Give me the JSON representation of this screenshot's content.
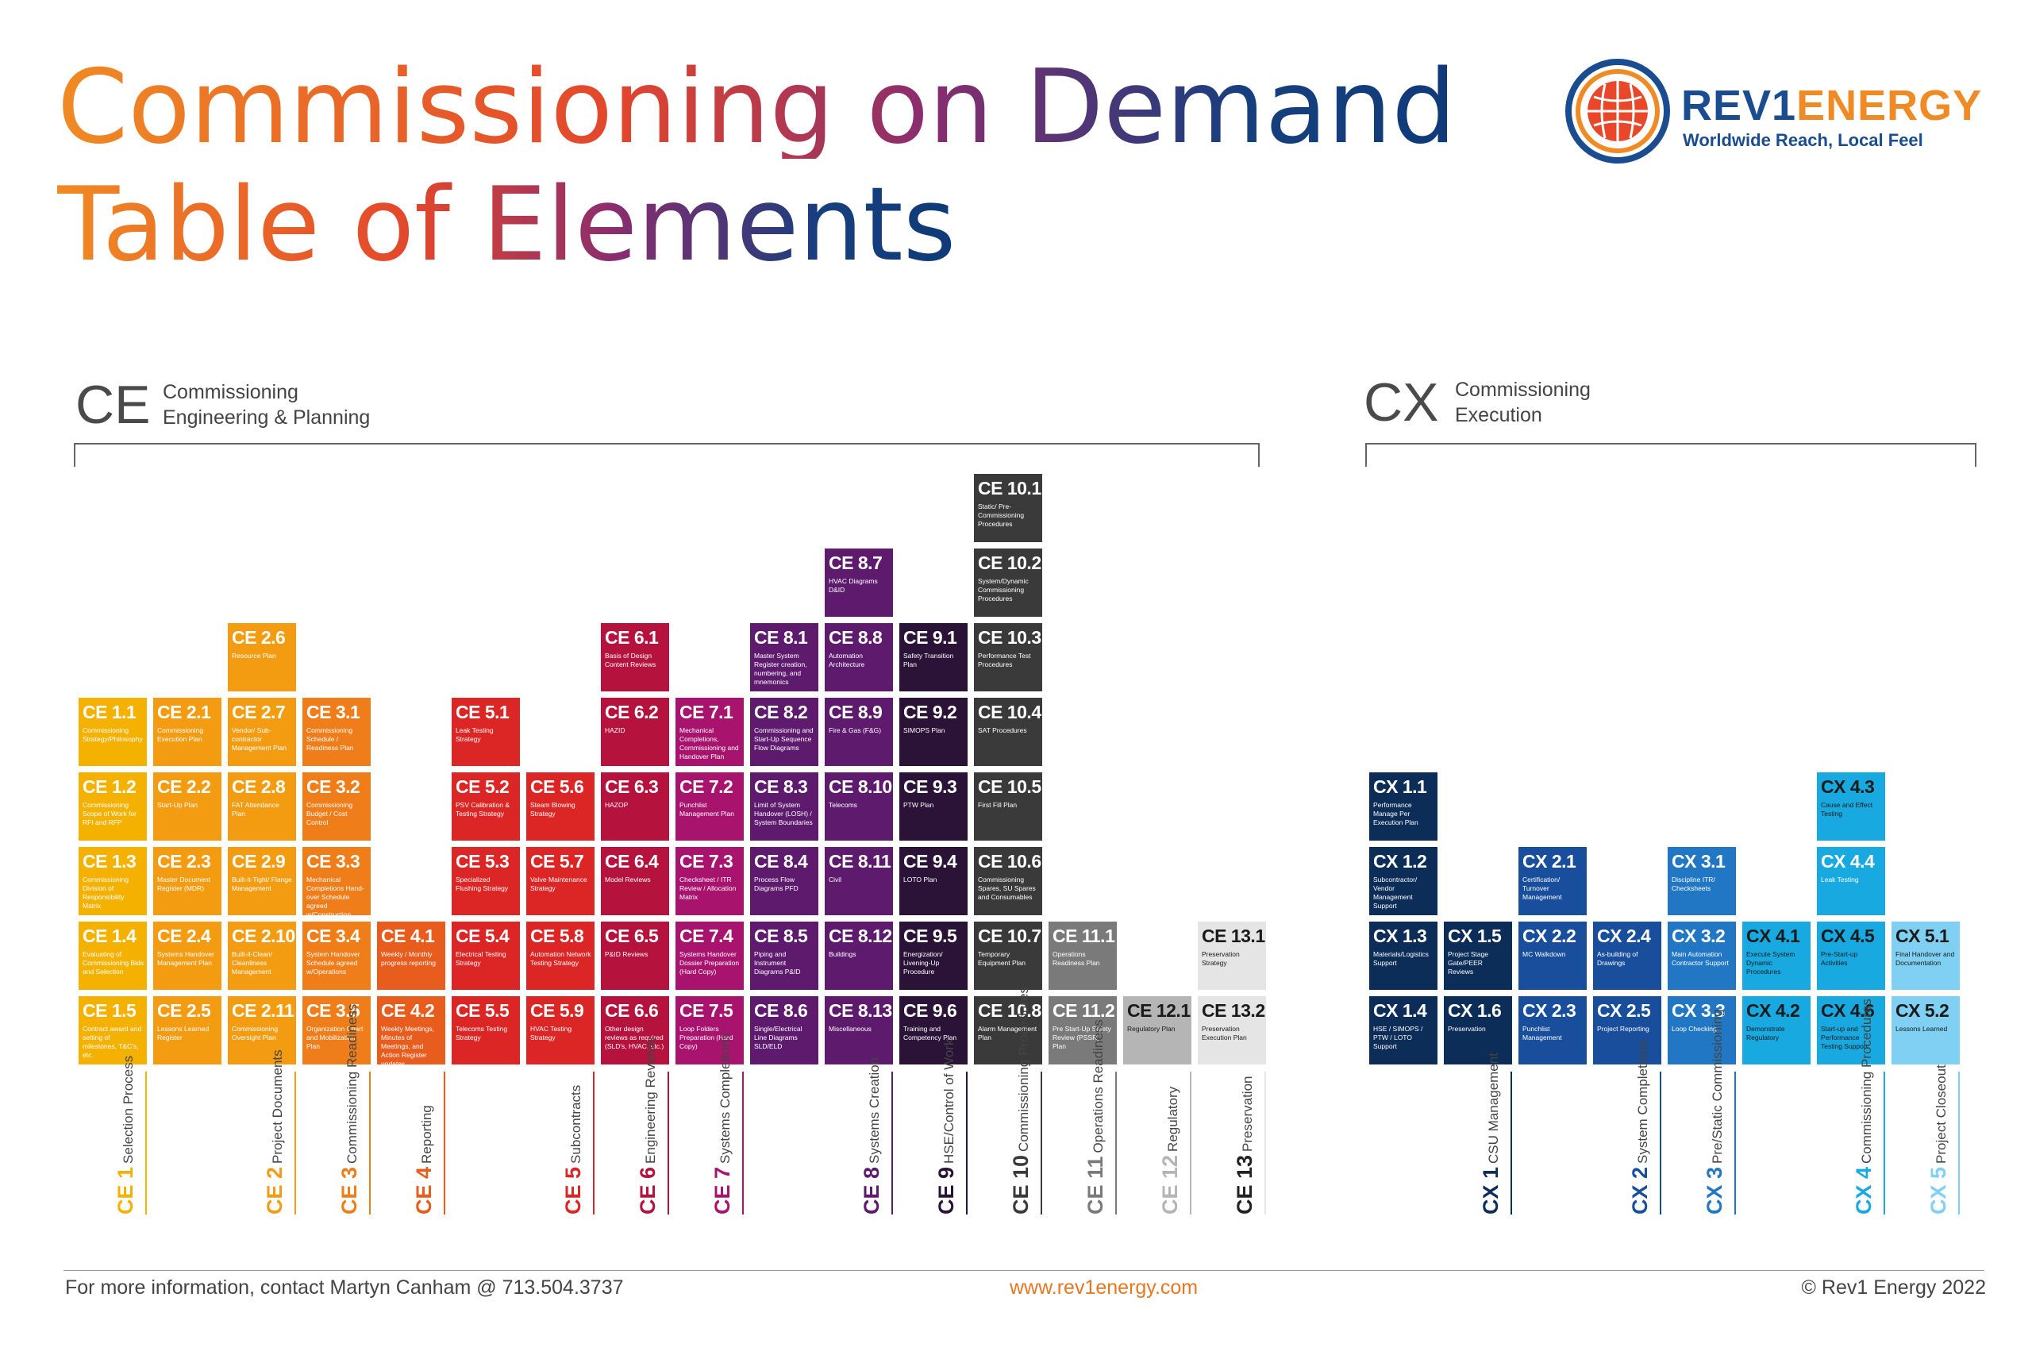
{
  "title_line1": "Commissioning on Demand",
  "title_line2": "Table of Elements",
  "logo": {
    "name_part1": "REV1",
    "name_part2": "ENERGY",
    "tagline": "Worldwide Reach, Local Feel"
  },
  "sections": {
    "ce": {
      "code": "CE",
      "name_line1": "Commissioning",
      "name_line2": "Engineering & Planning"
    },
    "cx": {
      "code": "CX",
      "name_line1": "Commissioning",
      "name_line2": "Execution"
    }
  },
  "colors": {
    "ce1": "#f5b100",
    "ce2": "#f39c12",
    "ce3": "#ef7d1a",
    "ce4": "#e85c1e",
    "ce5": "#dc2626",
    "ce6": "#b5123e",
    "ce7": "#a8136e",
    "ce8": "#5e1b6e",
    "ce9": "#2b1338",
    "ce10": "#3a3a3a",
    "ce11": "#7a7a7a",
    "ce12": "#b5b5b5",
    "ce13": "#e5e5e5",
    "cx1": "#0c2d57",
    "cx2": "#184e9b",
    "cx3": "#2177c4",
    "cx4": "#18a9e0",
    "cx5": "#7fd0f2"
  },
  "elements": [
    {
      "col": 0,
      "row": 1,
      "g": "ce1",
      "code": "CE 1.1",
      "desc": "Commissioning Strategy/Philosophy"
    },
    {
      "col": 0,
      "row": 2,
      "g": "ce1",
      "code": "CE 1.2",
      "desc": "Commissioning Scope of Work for RFI and RFP"
    },
    {
      "col": 0,
      "row": 3,
      "g": "ce1",
      "code": "CE 1.3",
      "desc": "Commissioning Division of Responsibility Matrix"
    },
    {
      "col": 0,
      "row": 4,
      "g": "ce1",
      "code": "CE 1.4",
      "desc": "Evaluating of Commissioning Bids and Selection"
    },
    {
      "col": 0,
      "row": 5,
      "g": "ce1",
      "code": "CE 1.5",
      "desc": "Contract award and setting of milestones, T&C's, etc."
    },
    {
      "col": 1,
      "row": 1,
      "g": "ce2",
      "code": "CE 2.1",
      "desc": "Commissioning Execution Plan"
    },
    {
      "col": 1,
      "row": 2,
      "g": "ce2",
      "code": "CE 2.2",
      "desc": "Start-Up Plan"
    },
    {
      "col": 1,
      "row": 3,
      "g": "ce2",
      "code": "CE 2.3",
      "desc": "Master Document Register (MDR)"
    },
    {
      "col": 1,
      "row": 4,
      "g": "ce2",
      "code": "CE 2.4",
      "desc": "Systems Handover Management Plan"
    },
    {
      "col": 1,
      "row": 5,
      "g": "ce2",
      "code": "CE 2.5",
      "desc": "Lessons Learned Register"
    },
    {
      "col": 2,
      "row": 0,
      "g": "ce2",
      "code": "CE 2.6",
      "desc": "Resource Plan"
    },
    {
      "col": 2,
      "row": 1,
      "g": "ce2",
      "code": "CE 2.7",
      "desc": "Vendor/ Sub-contractor Management Plan"
    },
    {
      "col": 2,
      "row": 2,
      "g": "ce2",
      "code": "CE 2.8",
      "desc": "FAT Attendance Plan"
    },
    {
      "col": 2,
      "row": 3,
      "g": "ce2",
      "code": "CE 2.9",
      "desc": "Built-it-Tight/ Flange Management"
    },
    {
      "col": 2,
      "row": 4,
      "g": "ce2",
      "code": "CE 2.10",
      "desc": "Built-it-Clean/ Cleanliness Management"
    },
    {
      "col": 2,
      "row": 5,
      "g": "ce2",
      "code": "CE 2.11",
      "desc": "Commissioning Oversight Plan"
    },
    {
      "col": 3,
      "row": 1,
      "g": "ce3",
      "code": "CE 3.1",
      "desc": "Commissioning Schedule / Readiness Plan"
    },
    {
      "col": 3,
      "row": 2,
      "g": "ce3",
      "code": "CE 3.2",
      "desc": "Commissioning Budget / Cost Control"
    },
    {
      "col": 3,
      "row": 3,
      "g": "ce3",
      "code": "CE 3.3",
      "desc": "Mechanical Completions Hand-over Schedule agreed w/Construction"
    },
    {
      "col": 3,
      "row": 4,
      "g": "ce3",
      "code": "CE 3.4",
      "desc": "System Handover Schedule agreed w/Operations"
    },
    {
      "col": 3,
      "row": 5,
      "g": "ce3",
      "code": "CE 3.5",
      "desc": "Organization Chart and Mobilization Plan"
    },
    {
      "col": 4,
      "row": 4,
      "g": "ce4",
      "code": "CE 4.1",
      "desc": "Weekly / Monthly progress reporting"
    },
    {
      "col": 4,
      "row": 5,
      "g": "ce4",
      "code": "CE 4.2",
      "desc": "Weekly Meetings, Minutes of Meetings, and Action Register updates"
    },
    {
      "col": 5,
      "row": 1,
      "g": "ce5",
      "code": "CE 5.1",
      "desc": "Leak Testing Strategy"
    },
    {
      "col": 5,
      "row": 2,
      "g": "ce5",
      "code": "CE 5.2",
      "desc": "PSV Calibration & Testing Strategy"
    },
    {
      "col": 5,
      "row": 3,
      "g": "ce5",
      "code": "CE 5.3",
      "desc": "Specialized Flushing Strategy"
    },
    {
      "col": 5,
      "row": 4,
      "g": "ce5",
      "code": "CE 5.4",
      "desc": "Electrical Testing Strategy"
    },
    {
      "col": 5,
      "row": 5,
      "g": "ce5",
      "code": "CE 5.5",
      "desc": "Telecoms Testing Strategy"
    },
    {
      "col": 6,
      "row": 2,
      "g": "ce5",
      "code": "CE 5.6",
      "desc": "Steam Blowing Strategy"
    },
    {
      "col": 6,
      "row": 3,
      "g": "ce5",
      "code": "CE 5.7",
      "desc": "Valve Maintenance Strategy"
    },
    {
      "col": 6,
      "row": 4,
      "g": "ce5",
      "code": "CE 5.8",
      "desc": "Automation Network Testing Strategy"
    },
    {
      "col": 6,
      "row": 5,
      "g": "ce5",
      "code": "CE 5.9",
      "desc": "HVAC Testing Strategy"
    },
    {
      "col": 7,
      "row": 0,
      "g": "ce6",
      "code": "CE 6.1",
      "desc": "Basis of Design Content Reviews"
    },
    {
      "col": 7,
      "row": 1,
      "g": "ce6",
      "code": "CE 6.2",
      "desc": "HAZID"
    },
    {
      "col": 7,
      "row": 2,
      "g": "ce6",
      "code": "CE 6.3",
      "desc": "HAZOP"
    },
    {
      "col": 7,
      "row": 3,
      "g": "ce6",
      "code": "CE 6.4",
      "desc": "Model Reviews"
    },
    {
      "col": 7,
      "row": 4,
      "g": "ce6",
      "code": "CE 6.5",
      "desc": "P&ID Reviews"
    },
    {
      "col": 7,
      "row": 5,
      "g": "ce6",
      "code": "CE 6.6",
      "desc": "Other design reviews as required (SLD's, HVAC, etc.)"
    },
    {
      "col": 8,
      "row": 1,
      "g": "ce7",
      "code": "CE 7.1",
      "desc": "Mechanical Completions, Commissioning and Handover Plan"
    },
    {
      "col": 8,
      "row": 2,
      "g": "ce7",
      "code": "CE 7.2",
      "desc": "Punchlist Management Plan"
    },
    {
      "col": 8,
      "row": 3,
      "g": "ce7",
      "code": "CE 7.3",
      "desc": "Checksheet / ITR Review / Allocation Matrix"
    },
    {
      "col": 8,
      "row": 4,
      "g": "ce7",
      "code": "CE 7.4",
      "desc": "Systems Handover Dossier Preparation (Hard Copy)"
    },
    {
      "col": 8,
      "row": 5,
      "g": "ce7",
      "code": "CE 7.5",
      "desc": "Loop Folders Preparation (Hard Copy)"
    },
    {
      "col": 9,
      "row": 0,
      "g": "ce8",
      "code": "CE 8.1",
      "desc": "Master System Register creation, numbering, and mnemonics"
    },
    {
      "col": 9,
      "row": 1,
      "g": "ce8",
      "code": "CE 8.2",
      "desc": "Commissioning and Start-Up Sequence Flow Diagrams"
    },
    {
      "col": 9,
      "row": 2,
      "g": "ce8",
      "code": "CE 8.3",
      "desc": "Limit of System Handover (LOSH) / System Boundaries"
    },
    {
      "col": 9,
      "row": 3,
      "g": "ce8",
      "code": "CE 8.4",
      "desc": "Process Flow Diagrams PFD"
    },
    {
      "col": 9,
      "row": 4,
      "g": "ce8",
      "code": "CE 8.5",
      "desc": "Piping and Instrument Diagrams P&ID"
    },
    {
      "col": 9,
      "row": 5,
      "g": "ce8",
      "code": "CE 8.6",
      "desc": "Single/Electrical Line Diagrams SLD/ELD"
    },
    {
      "col": 10,
      "row": -1,
      "g": "ce8",
      "code": "CE 8.7",
      "desc": "HVAC Diagrams D&ID"
    },
    {
      "col": 10,
      "row": 0,
      "g": "ce8",
      "code": "CE 8.8",
      "desc": "Automation Architecture"
    },
    {
      "col": 10,
      "row": 1,
      "g": "ce8",
      "code": "CE 8.9",
      "desc": "Fire & Gas (F&G)"
    },
    {
      "col": 10,
      "row": 2,
      "g": "ce8",
      "code": "CE 8.10",
      "desc": "Telecoms"
    },
    {
      "col": 10,
      "row": 3,
      "g": "ce8",
      "code": "CE 8.11",
      "desc": "Civil"
    },
    {
      "col": 10,
      "row": 4,
      "g": "ce8",
      "code": "CE 8.12",
      "desc": "Buildings"
    },
    {
      "col": 10,
      "row": 5,
      "g": "ce8",
      "code": "CE 8.13",
      "desc": "Miscellaneous"
    },
    {
      "col": 11,
      "row": 0,
      "g": "ce9",
      "code": "CE 9.1",
      "desc": "Safety Transition Plan"
    },
    {
      "col": 11,
      "row": 1,
      "g": "ce9",
      "code": "CE 9.2",
      "desc": "SIMOPS Plan"
    },
    {
      "col": 11,
      "row": 2,
      "g": "ce9",
      "code": "CE 9.3",
      "desc": "PTW Plan"
    },
    {
      "col": 11,
      "row": 3,
      "g": "ce9",
      "code": "CE 9.4",
      "desc": "LOTO Plan"
    },
    {
      "col": 11,
      "row": 4,
      "g": "ce9",
      "code": "CE 9.5",
      "desc": "Energization/ Livening-Up Procedure"
    },
    {
      "col": 11,
      "row": 5,
      "g": "ce9",
      "code": "CE 9.6",
      "desc": "Training and Competency Plan"
    },
    {
      "col": 12,
      "row": -2,
      "g": "ce10",
      "code": "CE 10.1",
      "desc": "Static/ Pre-Commissioning Procedures"
    },
    {
      "col": 12,
      "row": -1,
      "g": "ce10",
      "code": "CE 10.2",
      "desc": "System/Dynamic Commissioning Procedures"
    },
    {
      "col": 12,
      "row": 0,
      "g": "ce10",
      "code": "CE 10.3",
      "desc": "Performance Test Procedures"
    },
    {
      "col": 12,
      "row": 1,
      "g": "ce10",
      "code": "CE 10.4",
      "desc": "SAT Procedures"
    },
    {
      "col": 12,
      "row": 2,
      "g": "ce10",
      "code": "CE 10.5",
      "desc": "First Fill Plan"
    },
    {
      "col": 12,
      "row": 3,
      "g": "ce10",
      "code": "CE 10.6",
      "desc": "Commissioning Spares, SU Spares and Consumables"
    },
    {
      "col": 12,
      "row": 4,
      "g": "ce10",
      "code": "CE 10.7",
      "desc": "Temporary Equipment Plan"
    },
    {
      "col": 12,
      "row": 5,
      "g": "ce10",
      "code": "CE 10.8",
      "desc": "Alarm Management Plan"
    },
    {
      "col": 13,
      "row": 4,
      "g": "ce11",
      "code": "CE 11.1",
      "desc": "Operations Readiness Plan"
    },
    {
      "col": 13,
      "row": 5,
      "g": "ce11",
      "code": "CE 11.2",
      "desc": "Pre Start-Up Safety Review (PSSR) Plan"
    },
    {
      "col": 14,
      "row": 5,
      "g": "ce12",
      "code": "CE 12.1",
      "desc": "Regulatory Plan",
      "dark": true
    },
    {
      "col": 15,
      "row": 4,
      "g": "ce13",
      "code": "CE 13.1",
      "desc": "Preservation Strategy",
      "dark": true
    },
    {
      "col": 15,
      "row": 5,
      "g": "ce13",
      "code": "CE 13.2",
      "desc": "Preservation Execution Plan",
      "dark": true
    },
    {
      "col": 16,
      "row": 2,
      "g": "cx1",
      "code": "CX 1.1",
      "desc": "Performance Manage Per Execution Plan"
    },
    {
      "col": 16,
      "row": 3,
      "g": "cx1",
      "code": "CX 1.2",
      "desc": "Subcontractor/ Vendor Management Support"
    },
    {
      "col": 16,
      "row": 4,
      "g": "cx1",
      "code": "CX 1.3",
      "desc": "Materials/Logistics Support"
    },
    {
      "col": 16,
      "row": 5,
      "g": "cx1",
      "code": "CX 1.4",
      "desc": "HSE / SIMOPS / PTW / LOTO Support"
    },
    {
      "col": 17,
      "row": 4,
      "g": "cx1",
      "code": "CX 1.5",
      "desc": "Project Stage Gate/PEER Reviews"
    },
    {
      "col": 17,
      "row": 5,
      "g": "cx1",
      "code": "CX 1.6",
      "desc": "Preservation"
    },
    {
      "col": 18,
      "row": 3,
      "g": "cx2",
      "code": "CX 2.1",
      "desc": "Certification/ Turnover Management"
    },
    {
      "col": 18,
      "row": 4,
      "g": "cx2",
      "code": "CX 2.2",
      "desc": "MC Walkdown"
    },
    {
      "col": 18,
      "row": 5,
      "g": "cx2",
      "code": "CX 2.3",
      "desc": "Punchlist Management"
    },
    {
      "col": 19,
      "row": 4,
      "g": "cx2",
      "code": "CX 2.4",
      "desc": "As-building of Drawings"
    },
    {
      "col": 19,
      "row": 5,
      "g": "cx2",
      "code": "CX 2.5",
      "desc": "Project Reporting"
    },
    {
      "col": 20,
      "row": 3,
      "g": "cx3",
      "code": "CX 3.1",
      "desc": "Discipline ITR/ Checksheets"
    },
    {
      "col": 20,
      "row": 4,
      "g": "cx3",
      "code": "CX 3.2",
      "desc": "Main Automation Contractor Support"
    },
    {
      "col": 20,
      "row": 5,
      "g": "cx3",
      "code": "CX 3.3",
      "desc": "Loop Checking"
    },
    {
      "col": 21,
      "row": 4,
      "g": "cx4",
      "code": "CX 4.1",
      "desc": "Execute System Dynamic Procedures",
      "dark": true
    },
    {
      "col": 21,
      "row": 5,
      "g": "cx4",
      "code": "CX 4.2",
      "desc": "Demonstrate Regulatory",
      "dark": true
    },
    {
      "col": 22,
      "row": 2,
      "g": "cx4",
      "code": "CX 4.3",
      "desc": "Cause and Effect Testing",
      "dark": true
    },
    {
      "col": 22,
      "row": 3,
      "g": "cx4",
      "code": "CX 4.4",
      "desc": "Leak Testing"
    },
    {
      "col": 22,
      "row": 4,
      "g": "cx4",
      "code": "CX 4.5",
      "desc": "Pre-Start-up Activities",
      "dark": true
    },
    {
      "col": 22,
      "row": 5,
      "g": "cx4",
      "code": "CX 4.6",
      "desc": "Start-up and Performance Testing Support",
      "dark": true
    },
    {
      "col": 23,
      "row": 4,
      "g": "cx5",
      "code": "CX 5.1",
      "desc": "Final Handover and Documentation",
      "dark": true
    },
    {
      "col": 23,
      "row": 5,
      "g": "cx5",
      "code": "CX 5.2",
      "desc": "Lessons Learned",
      "dark": true
    }
  ],
  "categories": [
    {
      "col": 0,
      "g": "ce1",
      "code": "CE 1",
      "name": "Selection Process"
    },
    {
      "col": 2,
      "g": "ce2",
      "code": "CE 2",
      "name": "Project Documents"
    },
    {
      "col": 3,
      "g": "ce3",
      "code": "CE 3",
      "name": "Commissioning Readiness"
    },
    {
      "col": 4,
      "g": "ce4",
      "code": "CE 4",
      "name": "Reporting"
    },
    {
      "col": 6,
      "g": "ce5",
      "code": "CE 5",
      "name": "Subcontracts"
    },
    {
      "col": 7,
      "g": "ce6",
      "code": "CE 6",
      "name": "Engineering Reviews"
    },
    {
      "col": 8,
      "g": "ce7",
      "code": "CE 7",
      "name": "Systems Completions"
    },
    {
      "col": 10,
      "g": "ce8",
      "code": "CE 8",
      "name": "Systems Creation"
    },
    {
      "col": 11,
      "g": "ce9",
      "code": "CE 9",
      "name": "HSE/Control of Work"
    },
    {
      "col": 12,
      "g": "ce10",
      "code": "CE 10",
      "name": "Commissioning Procedures"
    },
    {
      "col": 13,
      "g": "ce11",
      "code": "CE 11",
      "name": "Operations Readiness"
    },
    {
      "col": 14,
      "g": "ce12",
      "code": "CE 12",
      "name": "Regulatory"
    },
    {
      "col": 15,
      "g": "ce13",
      "code": "CE 13",
      "name": "Preservation"
    },
    {
      "col": 17,
      "g": "cx1",
      "code": "CX 1",
      "name": "CSU Management"
    },
    {
      "col": 19,
      "g": "cx2",
      "code": "CX 2",
      "name": "System Completions"
    },
    {
      "col": 20,
      "g": "cx3",
      "code": "CX 3",
      "name": "Pre/Static Commissioning"
    },
    {
      "col": 22,
      "g": "cx4",
      "code": "CX 4",
      "name": "Commissioning Procedures"
    },
    {
      "col": 23,
      "g": "cx5",
      "code": "CX 5",
      "name": "Project Closeout"
    }
  ],
  "footer": {
    "contact": "For more information, contact Martyn Canham @ 713.504.3737",
    "website": "www.rev1energy.com",
    "copyright": "© Rev1 Energy 2022"
  }
}
